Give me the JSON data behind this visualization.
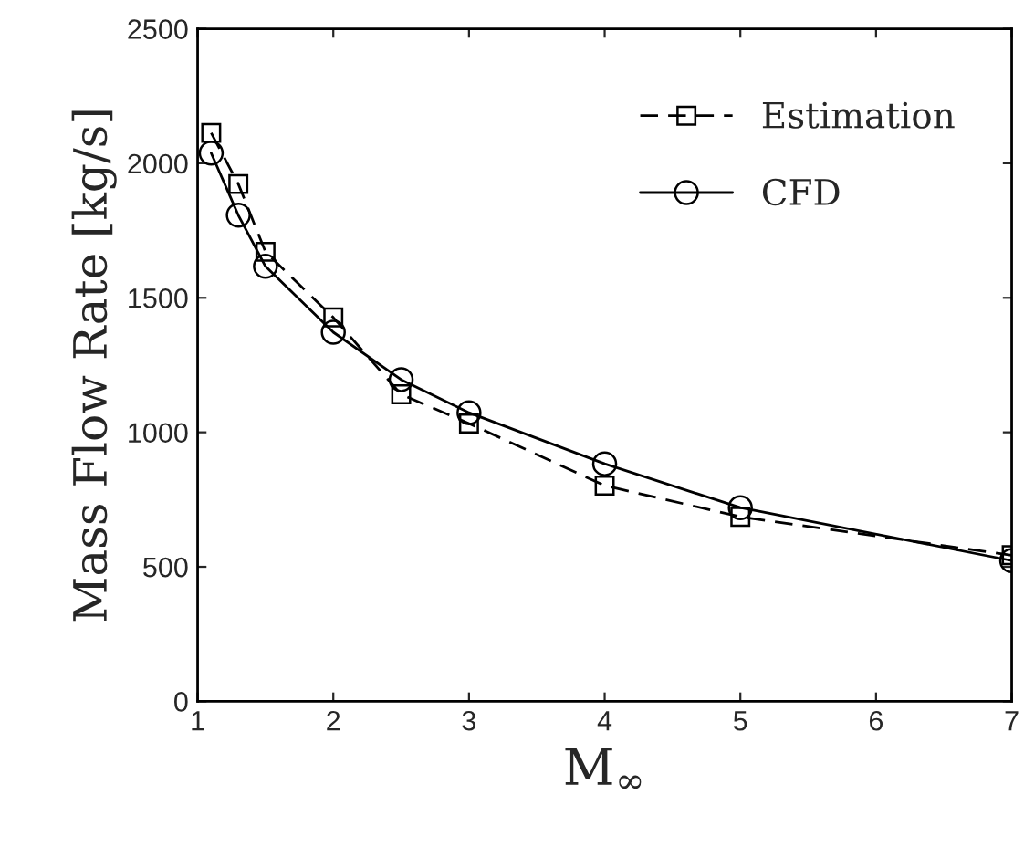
{
  "chart_data": {
    "type": "line",
    "xlabel": "M$_{∞}$",
    "ylabel": "Mass Flow Rate [kg/s]",
    "x": [
      1.1,
      1.3,
      1.5,
      2,
      2.5,
      3,
      4,
      5,
      7
    ],
    "series": [
      {
        "name": "Estimation",
        "color": "#000000",
        "marker": "square",
        "line_style": "dashed",
        "values": [
          2113,
          1923,
          1671,
          1427,
          1141,
          1033,
          802,
          686,
          543
        ]
      },
      {
        "name": "CFD",
        "color": "#000000",
        "marker": "circle",
        "line_style": "solid",
        "values": [
          2038,
          1807,
          1617,
          1372,
          1196,
          1073,
          883,
          720,
          523
        ]
      }
    ],
    "xlim": [
      1,
      7
    ],
    "xticks": [
      1,
      2,
      3,
      4,
      5,
      6,
      7
    ],
    "ylim": [
      0,
      2500
    ],
    "yticks": [
      0,
      500,
      1000,
      1500,
      2000,
      2500
    ],
    "grid": false,
    "legend": "top right"
  }
}
